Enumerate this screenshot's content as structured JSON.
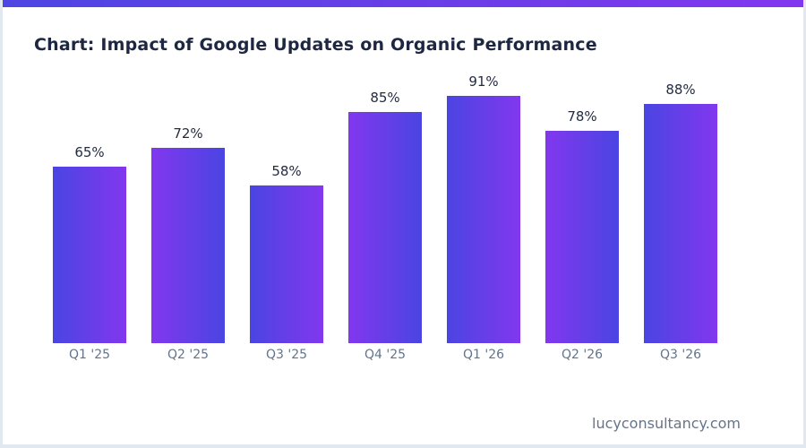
{
  "page": {
    "background": "#ffffff",
    "border_color": "#e2e8f0",
    "accent_bar": {
      "gradient_from": "#4e45e2",
      "gradient_to": "#8237ee"
    }
  },
  "header": {
    "title": "Chart: Impact of Google Updates on Organic Performance",
    "title_color": "#1e2742"
  },
  "footer": {
    "website": "lucyconsultancy.com",
    "text_color": "#64748b"
  },
  "chart_data": {
    "type": "bar",
    "title": "Chart: Impact of Google Updates on Organic Performance",
    "categories": [
      "Q1 '25",
      "Q2 '25",
      "Q3 '25",
      "Q4 '25",
      "Q1 '26",
      "Q2 '26",
      "Q3 '26"
    ],
    "values": [
      65,
      72,
      58,
      85,
      91,
      78,
      88
    ],
    "value_labels": [
      "65%",
      "72%",
      "58%",
      "85%",
      "91%",
      "78%",
      "88%"
    ],
    "unit": "%",
    "xlabel": "",
    "ylabel": "",
    "ylim": [
      0,
      100
    ],
    "grid": false,
    "legend": null,
    "bar_style": {
      "gradient_from": "#4a45e2",
      "gradient_to": "#8237ee",
      "alternating_gradient_direction": true
    },
    "value_label_color": "#222c42",
    "category_label_color": "#64748b"
  }
}
